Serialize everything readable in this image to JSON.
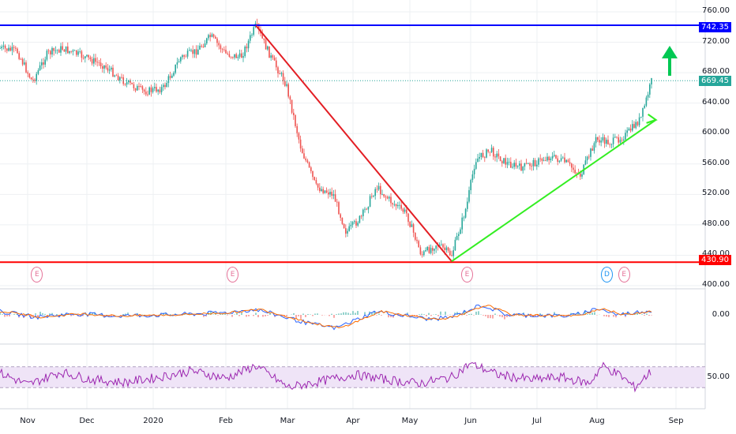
{
  "colors": {
    "resistance": "#0000ff",
    "support": "#ff0000",
    "downtrend": "#e31e24",
    "uptrend": "#33ee22",
    "arrow": "#00c853",
    "price_line": "#26a69a",
    "up_candle": "#26a69a",
    "down_candle": "#ef5350",
    "rsi_line": "#9c27b0",
    "rsi_band": "#efe4f7",
    "macd_line": "#2962ff",
    "signal_line": "#ff6d00"
  },
  "price_axis": {
    "ticks": [
      "760.00",
      "720.00",
      "680.00",
      "640.00",
      "600.00",
      "560.00",
      "520.00",
      "480.00",
      "440.00",
      "400.00"
    ],
    "resistance_tag": "742.35",
    "last_price_tag": "669.45",
    "support_tag": "430.90"
  },
  "macd_axis": {
    "ticks": [
      "0.00"
    ]
  },
  "rsi_axis": {
    "ticks": [
      "50.00"
    ]
  },
  "time_axis": {
    "ticks": [
      "Nov",
      "Dec",
      "2020",
      "Feb",
      "Mar",
      "Apr",
      "May",
      "Jun",
      "Jul",
      "Aug",
      "Sep"
    ]
  },
  "event_markers": [
    {
      "label": "E",
      "type": "earnings",
      "date": "2019-11-14"
    },
    {
      "label": "E",
      "type": "earnings",
      "date": "2020-02-13"
    },
    {
      "label": "E",
      "type": "earnings",
      "date": "2020-06-01"
    },
    {
      "label": "D",
      "type": "dividend",
      "date": "2020-08-05"
    },
    {
      "label": "E",
      "type": "earnings",
      "date": "2020-08-13"
    }
  ],
  "chart_data": [
    {
      "type": "candlestick",
      "title": "",
      "x_range": [
        "2019-10-28",
        "2020-09-10"
      ],
      "ylim": [
        395,
        770
      ],
      "series": [
        {
          "type": "close_path",
          "points": [
            [
              "2019-10-28",
              712
            ],
            [
              "2019-11-05",
              708
            ],
            [
              "2019-11-12",
              668
            ],
            [
              "2019-11-19",
              705
            ],
            [
              "2019-11-26",
              712
            ],
            [
              "2019-12-05",
              702
            ],
            [
              "2019-12-15",
              690
            ],
            [
              "2019-12-25",
              668
            ],
            [
              "2020-01-03",
              655
            ],
            [
              "2020-01-12",
              660
            ],
            [
              "2020-01-20",
              700
            ],
            [
              "2020-01-27",
              708
            ],
            [
              "2020-02-03",
              728
            ],
            [
              "2020-02-10",
              705
            ],
            [
              "2020-02-17",
              700
            ],
            [
              "2020-02-24",
              742
            ],
            [
              "2020-03-02",
              700
            ],
            [
              "2020-03-09",
              665
            ],
            [
              "2020-03-16",
              580
            ],
            [
              "2020-03-23",
              530
            ],
            [
              "2020-03-31",
              520
            ],
            [
              "2020-04-06",
              470
            ],
            [
              "2020-04-13",
              490
            ],
            [
              "2020-04-20",
              530
            ],
            [
              "2020-04-27",
              510
            ],
            [
              "2020-05-04",
              495
            ],
            [
              "2020-05-11",
              440
            ],
            [
              "2020-05-18",
              455
            ],
            [
              "2020-05-25",
              440
            ],
            [
              "2020-06-01",
              505
            ],
            [
              "2020-06-05",
              565
            ],
            [
              "2020-06-12",
              578
            ],
            [
              "2020-06-19",
              562
            ],
            [
              "2020-06-26",
              555
            ],
            [
              "2020-07-03",
              562
            ],
            [
              "2020-07-10",
              570
            ],
            [
              "2020-07-17",
              562
            ],
            [
              "2020-07-24",
              545
            ],
            [
              "2020-07-31",
              592
            ],
            [
              "2020-08-07",
              588
            ],
            [
              "2020-08-14",
              598
            ],
            [
              "2020-08-21",
              620
            ],
            [
              "2020-08-26",
              669
            ]
          ]
        },
        {
          "type": "hline",
          "name": "742.35",
          "value": 742.35
        },
        {
          "type": "hline",
          "name": "430.90",
          "value": 430.9
        },
        {
          "type": "trendline",
          "from": [
            "2020-02-24",
            742
          ],
          "to": [
            "2020-05-25",
            432
          ]
        },
        {
          "type": "trendline",
          "from": [
            "2020-05-25",
            432
          ],
          "to": [
            "2020-08-28",
            618
          ]
        },
        {
          "type": "hline",
          "value": 669.45
        }
      ]
    },
    {
      "type": "line",
      "ylim": [
        -1,
        1
      ],
      "yticks": [
        0
      ],
      "series": [
        {
          "type": "macd",
          "points": [
            [
              "2019-10-28",
              0.15
            ],
            [
              "2019-11-14",
              -0.1
            ],
            [
              "2019-12-02",
              0.05
            ],
            [
              "2019-12-20",
              -0.05
            ],
            [
              "2020-01-15",
              0.0
            ],
            [
              "2020-02-10",
              0.1
            ],
            [
              "2020-02-24",
              0.25
            ],
            [
              "2020-03-20",
              -0.4
            ],
            [
              "2020-04-01",
              -0.6
            ],
            [
              "2020-04-20",
              0.15
            ],
            [
              "2020-05-15",
              -0.2
            ],
            [
              "2020-05-25",
              -0.1
            ],
            [
              "2020-06-08",
              0.45
            ],
            [
              "2020-06-20",
              0.0
            ],
            [
              "2020-07-20",
              -0.05
            ],
            [
              "2020-08-01",
              0.3
            ],
            [
              "2020-08-10",
              0.0
            ],
            [
              "2020-08-26",
              0.2
            ]
          ]
        }
      ]
    },
    {
      "type": "line",
      "ylim": [
        20,
        80
      ],
      "yticks": [
        50
      ],
      "series": [
        {
          "type": "rsi",
          "band": [
            30,
            70
          ],
          "points": [
            [
              "2019-10-28",
              58
            ],
            [
              "2019-11-10",
              35
            ],
            [
              "2019-11-25",
              60
            ],
            [
              "2019-12-10",
              45
            ],
            [
              "2019-12-25",
              40
            ],
            [
              "2020-01-10",
              50
            ],
            [
              "2020-01-25",
              62
            ],
            [
              "2020-02-10",
              48
            ],
            [
              "2020-02-24",
              72
            ],
            [
              "2020-03-10",
              30
            ],
            [
              "2020-03-25",
              42
            ],
            [
              "2020-04-10",
              55
            ],
            [
              "2020-04-25",
              45
            ],
            [
              "2020-05-10",
              38
            ],
            [
              "2020-05-25",
              50
            ],
            [
              "2020-06-03",
              77
            ],
            [
              "2020-06-15",
              55
            ],
            [
              "2020-07-01",
              45
            ],
            [
              "2020-07-15",
              50
            ],
            [
              "2020-07-28",
              38
            ],
            [
              "2020-08-03",
              72
            ],
            [
              "2020-08-12",
              52
            ],
            [
              "2020-08-18",
              30
            ],
            [
              "2020-08-26",
              62
            ]
          ]
        }
      ]
    }
  ]
}
